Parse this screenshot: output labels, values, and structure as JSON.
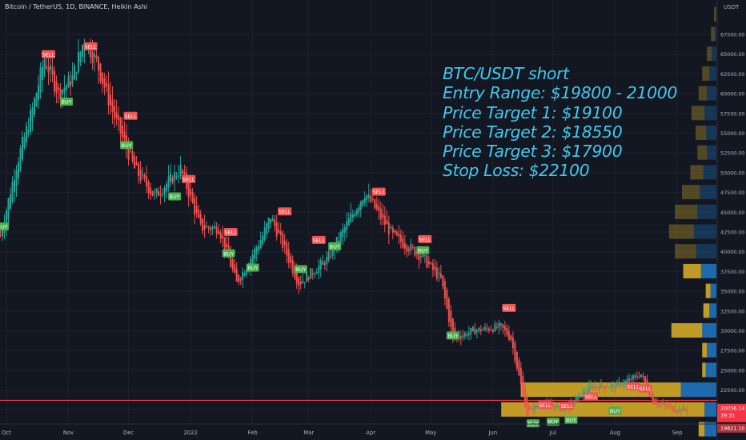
{
  "header": {
    "title": "Bitcoin / TetherUS, 1D, BINANCE, Heikin Ashi",
    "unit": "USDT"
  },
  "annotation": [
    "BTC/USDT short",
    "Entry Range: $19800 - 21000",
    "Price Target 1: $19100",
    "Price Target 2: $18550",
    "Price Target 3: $17900",
    "Stop Loss: $22100"
  ],
  "colors": {
    "background": "#131722",
    "bull": "#26a69a",
    "bear": "#ef5350",
    "buy_label": "#4caf50",
    "sell_label": "#f05350",
    "annotation": "#45c5e8",
    "price_line": "#f23645",
    "vp_blue": "#1e6fb6",
    "vp_gold": "#c9a227"
  },
  "chart_data": {
    "type": "candlestick",
    "chart_style": "Heikin Ashi",
    "symbol": "Bitcoin / TetherUS",
    "interval": "1D",
    "exchange": "BINANCE",
    "y_unit": "USDT",
    "ylim": [
      17800,
      70100
    ],
    "y_ticks": [
      "67500.00",
      "65000.00",
      "62500.00",
      "60000.00",
      "57500.00",
      "55000.00",
      "52500.00",
      "50000.00",
      "47500.00",
      "45000.00",
      "42500.00",
      "40000.00",
      "37500.00",
      "35000.00",
      "32500.00",
      "30000.00",
      "27500.00",
      "25000.00",
      "22500.00",
      "20000.00"
    ],
    "x_ticks": [
      "Oct",
      "Nov",
      "Dec",
      "2022",
      "Feb",
      "Mar",
      "Apr",
      "May",
      "Jun",
      "Jul",
      "Aug",
      "Sep"
    ],
    "x_tick_dates": [
      "2021-10-01",
      "2021-11-01",
      "2021-12-01",
      "2022-01-01",
      "2022-02-01",
      "2022-03-01",
      "2022-04-01",
      "2022-05-01",
      "2022-06-01",
      "2022-07-01",
      "2022-08-01",
      "2022-09-01"
    ],
    "trend_anchors": [
      [
        "2021-09-28",
        42000
      ],
      [
        "2021-10-06",
        51000
      ],
      [
        "2021-10-14",
        58000
      ],
      [
        "2021-10-20",
        64500
      ],
      [
        "2021-10-27",
        60000
      ],
      [
        "2021-11-03",
        62000
      ],
      [
        "2021-11-09",
        67000
      ],
      [
        "2021-11-15",
        64000
      ],
      [
        "2021-11-24",
        57000
      ],
      [
        "2021-12-04",
        50500
      ],
      [
        "2021-12-14",
        47000
      ],
      [
        "2021-12-27",
        50500
      ],
      [
        "2022-01-06",
        43000
      ],
      [
        "2022-01-15",
        43000
      ],
      [
        "2022-01-24",
        36000
      ],
      [
        "2022-02-06",
        42000
      ],
      [
        "2022-02-10",
        44500
      ],
      [
        "2022-02-24",
        36000
      ],
      [
        "2022-03-10",
        39000
      ],
      [
        "2022-03-29",
        47500
      ],
      [
        "2022-04-12",
        42000
      ],
      [
        "2022-04-26",
        39500
      ],
      [
        "2022-05-06",
        36500
      ],
      [
        "2022-05-12",
        29000
      ],
      [
        "2022-05-22",
        30000
      ],
      [
        "2022-06-05",
        30500
      ],
      [
        "2022-06-10",
        29000
      ],
      [
        "2022-06-18",
        19500
      ],
      [
        "2022-06-25",
        21000
      ],
      [
        "2022-07-06",
        20000
      ],
      [
        "2022-07-20",
        23000
      ],
      [
        "2022-08-01",
        23000
      ],
      [
        "2022-08-14",
        24500
      ],
      [
        "2022-08-20",
        21000
      ],
      [
        "2022-08-31",
        20000
      ],
      [
        "2022-09-06",
        20056
      ]
    ],
    "last_price": 20056.14,
    "last_price_label": "20056.14",
    "countdown_label": "39:31",
    "low_price_label": "19821.10",
    "horizontal_line": 21200,
    "signals": [
      {
        "type": "BUY",
        "date": "2021-09-29",
        "price": 43200
      },
      {
        "type": "SELL",
        "date": "2021-10-22",
        "price": 65000
      },
      {
        "type": "BUY",
        "date": "2021-10-31",
        "price": 59000
      },
      {
        "type": "SELL",
        "date": "2021-11-12",
        "price": 66000
      },
      {
        "type": "SELL",
        "date": "2021-12-02",
        "price": 57200
      },
      {
        "type": "BUY",
        "date": "2021-11-30",
        "price": 53500
      },
      {
        "type": "SELL",
        "date": "2021-12-31",
        "price": 49200
      },
      {
        "type": "BUY",
        "date": "2021-12-24",
        "price": 47000
      },
      {
        "type": "SELL",
        "date": "2022-01-21",
        "price": 42500
      },
      {
        "type": "BUY",
        "date": "2022-01-20",
        "price": 39800
      },
      {
        "type": "BUY",
        "date": "2022-02-01",
        "price": 38000
      },
      {
        "type": "SELL",
        "date": "2022-02-17",
        "price": 45100
      },
      {
        "type": "BUY",
        "date": "2022-02-25",
        "price": 37800
      },
      {
        "type": "SELL",
        "date": "2022-03-06",
        "price": 41500
      },
      {
        "type": "BUY",
        "date": "2022-03-14",
        "price": 40700
      },
      {
        "type": "SELL",
        "date": "2022-04-05",
        "price": 47600
      },
      {
        "type": "SELL",
        "date": "2022-04-28",
        "price": 41600
      },
      {
        "type": "BUY",
        "date": "2022-04-27",
        "price": 40200
      },
      {
        "type": "BUY",
        "date": "2022-05-12",
        "price": 29400
      },
      {
        "type": "SELL",
        "date": "2022-06-09",
        "price": 32900
      },
      {
        "type": "BUY",
        "date": "2022-06-21",
        "price": 18300
      },
      {
        "type": "SELL",
        "date": "2022-06-27",
        "price": 20600
      },
      {
        "type": "SELL",
        "date": "2022-07-08",
        "price": 20500
      },
      {
        "type": "BUY",
        "date": "2022-07-01",
        "price": 18500
      },
      {
        "type": "BUY",
        "date": "2022-07-10",
        "price": 18700
      },
      {
        "type": "SELL",
        "date": "2022-07-20",
        "price": 21700
      },
      {
        "type": "BUY",
        "date": "2022-08-01",
        "price": 19900
      },
      {
        "type": "SELL",
        "date": "2022-08-10",
        "price": 23000
      },
      {
        "type": "SELL",
        "date": "2022-08-16",
        "price": 22700
      }
    ],
    "volume_profile": [
      {
        "price": 70000,
        "blue": 0,
        "gold": 0.04
      },
      {
        "price": 67500,
        "blue": 0.03,
        "gold": 0.06
      },
      {
        "price": 65000,
        "blue": 0.08,
        "gold": 0.08
      },
      {
        "price": 62500,
        "blue": 0.12,
        "gold": 0.12
      },
      {
        "price": 60000,
        "blue": 0.16,
        "gold": 0.14
      },
      {
        "price": 57500,
        "blue": 0.2,
        "gold": 0.22
      },
      {
        "price": 55000,
        "blue": 0.17,
        "gold": 0.18
      },
      {
        "price": 52500,
        "blue": 0.16,
        "gold": 0.16
      },
      {
        "price": 50000,
        "blue": 0.22,
        "gold": 0.22
      },
      {
        "price": 47500,
        "blue": 0.28,
        "gold": 0.3
      },
      {
        "price": 45000,
        "blue": 0.32,
        "gold": 0.38
      },
      {
        "price": 42500,
        "blue": 0.38,
        "gold": 0.42
      },
      {
        "price": 40000,
        "blue": 0.34,
        "gold": 0.36
      },
      {
        "price": 37500,
        "blue": 0.26,
        "gold": 0.3
      },
      {
        "price": 35000,
        "blue": 0.1,
        "gold": 0.08
      },
      {
        "price": 32500,
        "blue": 0.12,
        "gold": 0.1
      },
      {
        "price": 30000,
        "blue": 0.24,
        "gold": 0.52
      },
      {
        "price": 27500,
        "blue": 0.16,
        "gold": 0.08
      },
      {
        "price": 25000,
        "blue": 0.18,
        "gold": 0.06
      },
      {
        "price": 22500,
        "blue": 0.6,
        "gold": 1.0
      },
      {
        "price": 20000,
        "blue": 0.2,
        "gold": 1.0
      },
      {
        "price": 17500,
        "blue": 0.2,
        "gold": 0.1
      }
    ]
  }
}
